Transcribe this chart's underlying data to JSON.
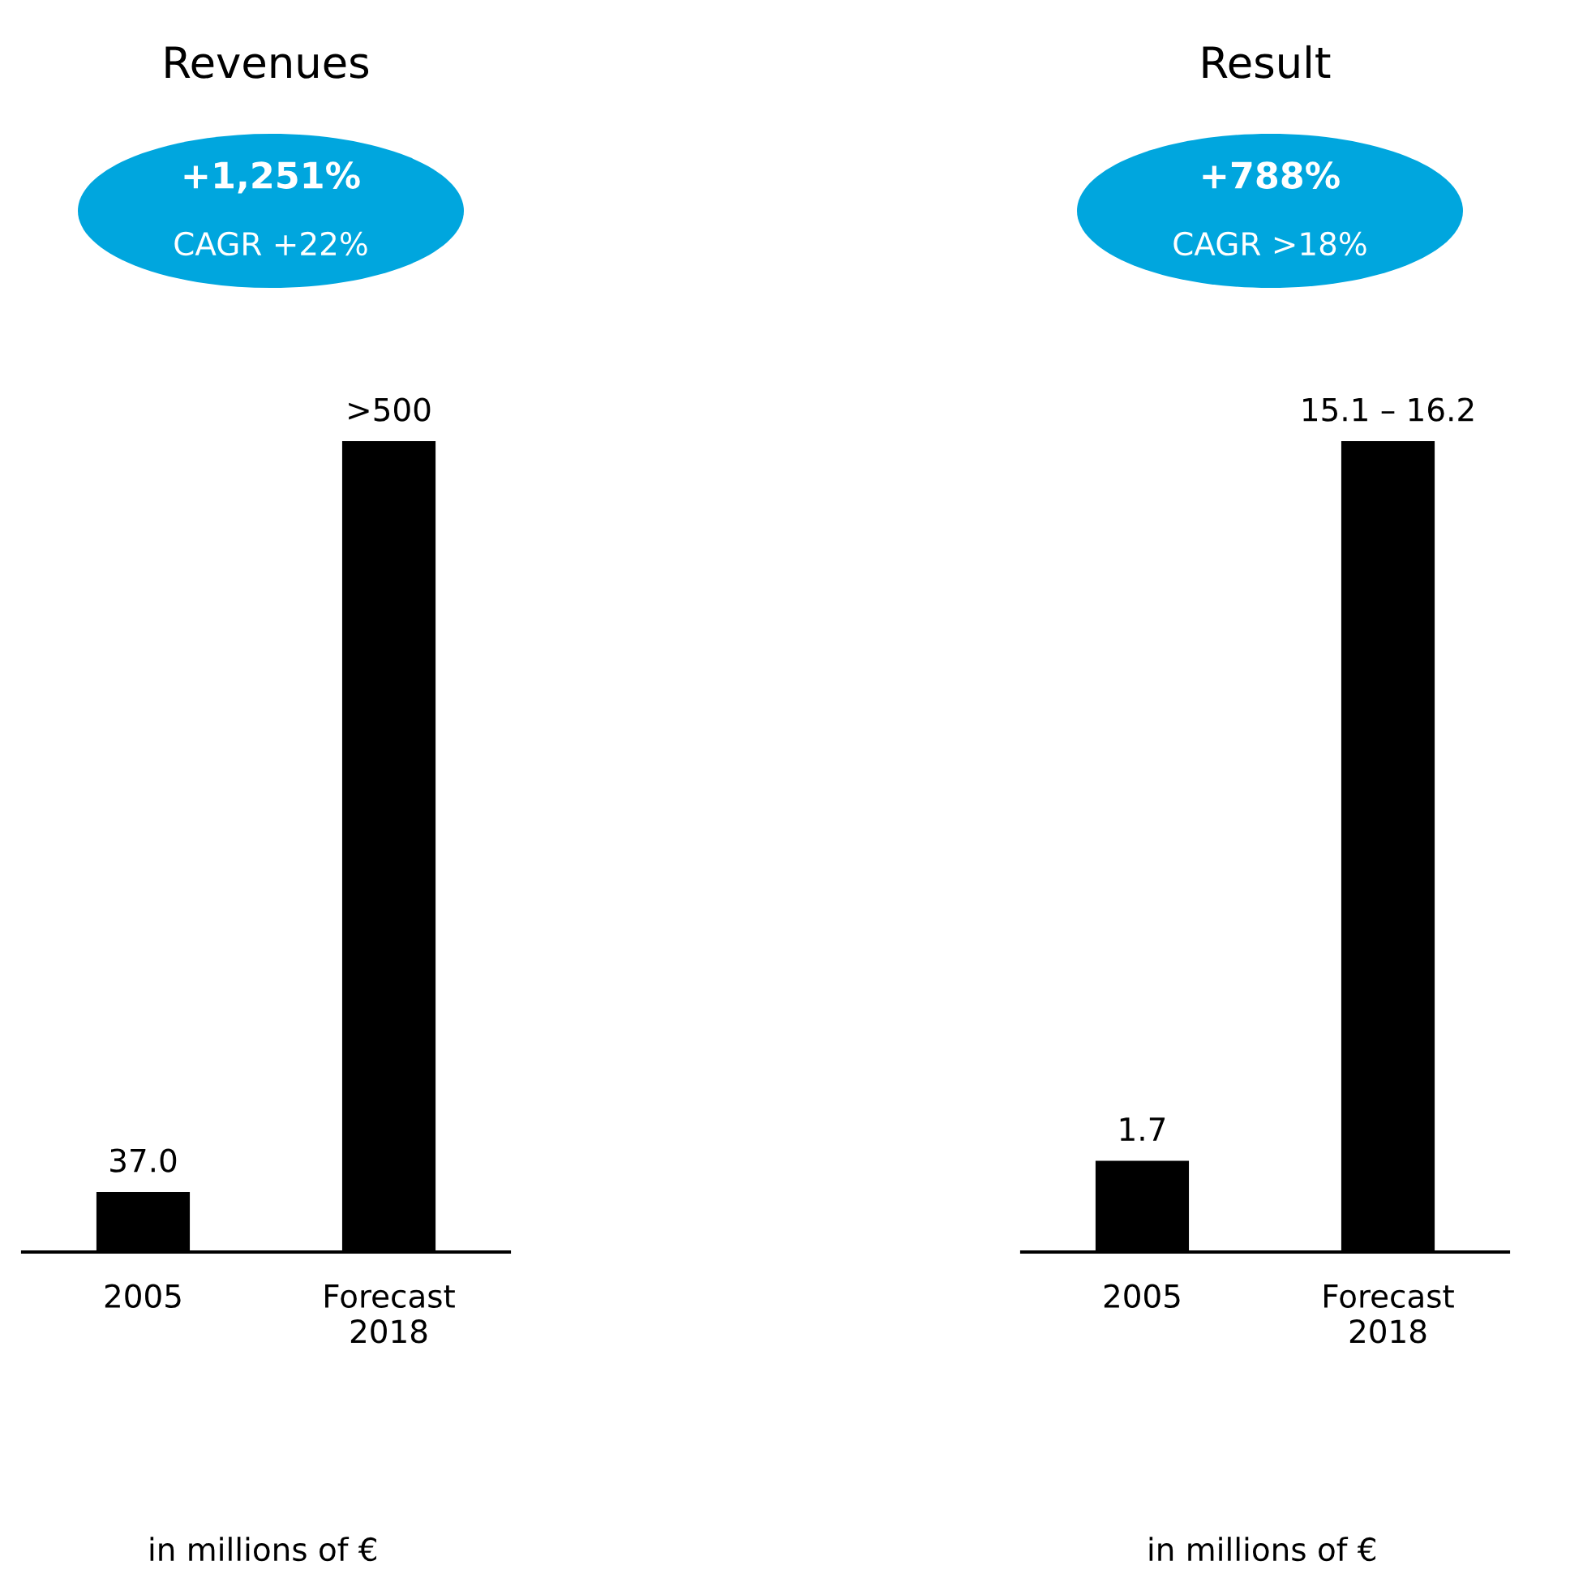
{
  "chart_data": [
    {
      "type": "bar",
      "title": "Revenues",
      "categories": [
        "2005",
        "Forecast\n2018"
      ],
      "values": [
        37.0,
        500
      ],
      "value_labels": [
        "37.0",
        ">500"
      ],
      "color": "#000000",
      "tick_labels": "x",
      "grid": false,
      "legend": false,
      "annotations": [
        "+1,251%",
        "CAGR +22%",
        "in millions of €"
      ]
    },
    {
      "type": "bar",
      "title": "Result",
      "categories": [
        "2005",
        "Forecast\n2018"
      ],
      "values": [
        1.7,
        15.1
      ],
      "value_labels": [
        "1.7",
        "15.1 – 16.2"
      ],
      "color": "#000000",
      "tick_labels": "x",
      "grid": false,
      "legend": false,
      "annotations": [
        "+788%",
        "CAGR >18%",
        "in millions of €"
      ]
    }
  ]
}
